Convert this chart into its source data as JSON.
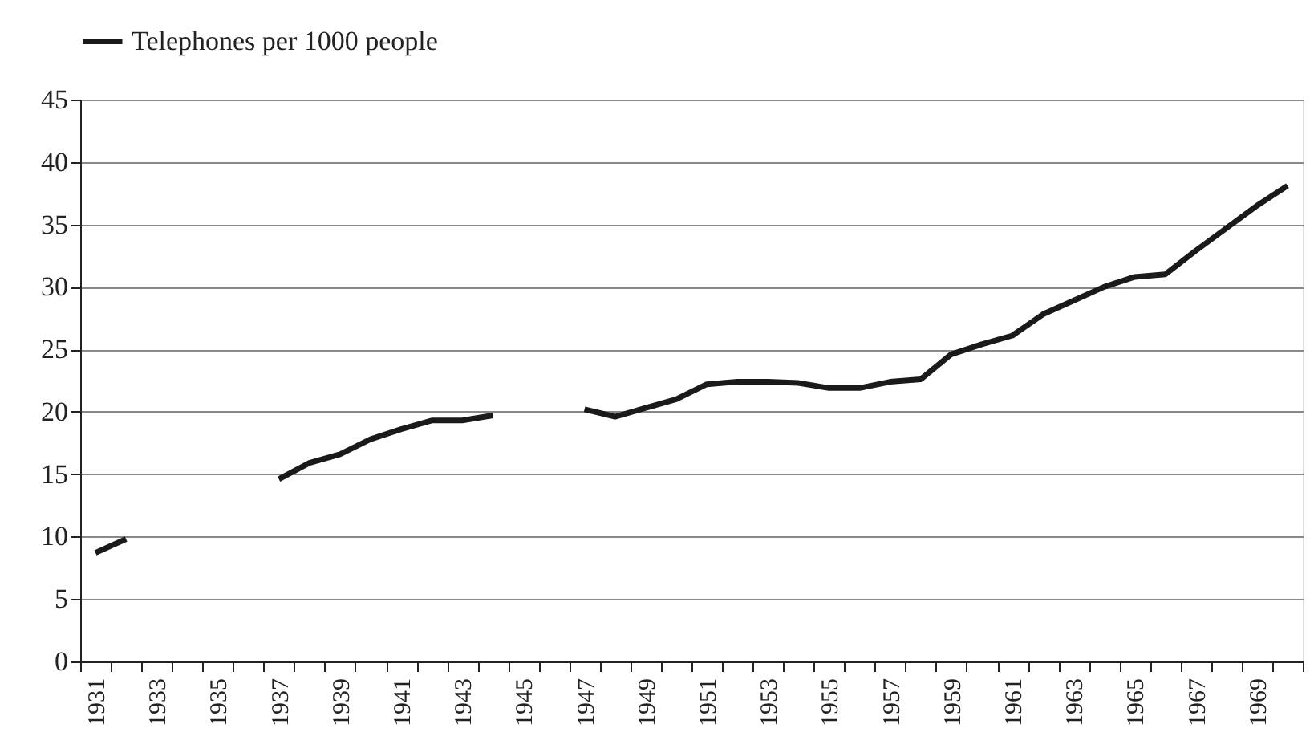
{
  "chart_data": {
    "type": "line",
    "categories": [
      "1931",
      null,
      "1933",
      null,
      "1935",
      null,
      "1937",
      null,
      "1939",
      null,
      "1941",
      null,
      "1943",
      null,
      "1945",
      null,
      "1947",
      null,
      "1949",
      null,
      "1951",
      null,
      "1953",
      null,
      "1955",
      null,
      "1957",
      null,
      "1959",
      null,
      "1961",
      null,
      "1963",
      null,
      "1965",
      null,
      "1967",
      null,
      "1969",
      null
    ],
    "series": [
      {
        "name": "Telephones per 1000 people",
        "color": "#1a1a1a",
        "values": [
          8.7,
          9.8,
          null,
          null,
          null,
          null,
          14.6,
          15.9,
          16.6,
          17.8,
          18.6,
          19.3,
          19.3,
          19.7,
          null,
          null,
          20.2,
          19.6,
          20.3,
          21.0,
          22.2,
          22.4,
          22.4,
          22.3,
          21.9,
          21.9,
          22.4,
          22.6,
          24.6,
          25.4,
          26.1,
          27.8,
          28.9,
          30.0,
          30.8,
          31.0,
          32.9,
          34.7,
          36.5,
          38.1
        ]
      }
    ],
    "ylim": [
      0,
      45
    ],
    "yticks": [
      0,
      5,
      10,
      15,
      20,
      25,
      30,
      35,
      40,
      45
    ],
    "grid": "y",
    "legend": "top left",
    "marker": "none",
    "line_style": "solid"
  }
}
